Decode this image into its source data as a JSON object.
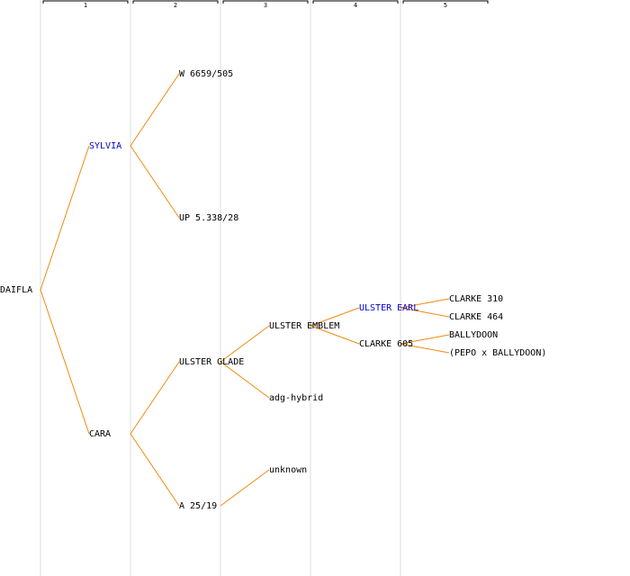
{
  "columns": [
    "1",
    "2",
    "3",
    "4",
    "5"
  ],
  "nodes": [
    "DAIFLA",
    "SYLVIA",
    "CARA",
    "W 6659/505",
    "UP 5.338/28",
    "ULSTER GLADE",
    "A 25/19",
    "ULSTER EMBLEM",
    "adg-hybrid",
    "unknown",
    "ULSTER EARL",
    "CLARKE 605",
    "CLARKE 310",
    "CLARKE 464",
    "BALLYDOON",
    "(PEPO x BALLYDOON)"
  ]
}
